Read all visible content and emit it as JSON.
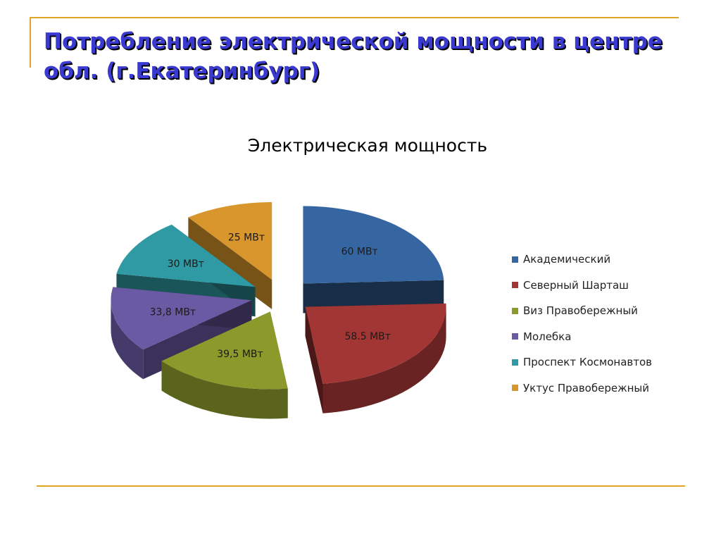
{
  "slide": {
    "title": "Потребление электрической мощности в центре обл. (г.Екатеринбург)"
  },
  "chart_data": {
    "type": "pie",
    "variant": "3d-exploded",
    "title": "Электрическая мощность",
    "categories": [
      "Академический",
      "Северный Шарташ",
      "Виз Правобережный",
      "Молебка",
      "Проспект Космонавтов",
      "Уктус Правобережный"
    ],
    "values": [
      60,
      58.5,
      39.5,
      33.8,
      30,
      25
    ],
    "data_labels": [
      "60 МВт",
      "58.5 МВт",
      "39,5 МВт",
      "33,8 МВт",
      "30 МВт",
      "25 МВт"
    ],
    "unit": "МВт",
    "legend_position": "right",
    "colors": [
      "#3566a1",
      "#a23634",
      "#8c9a2c",
      "#6a5aa3",
      "#2f9aa3",
      "#d8962c"
    ]
  }
}
